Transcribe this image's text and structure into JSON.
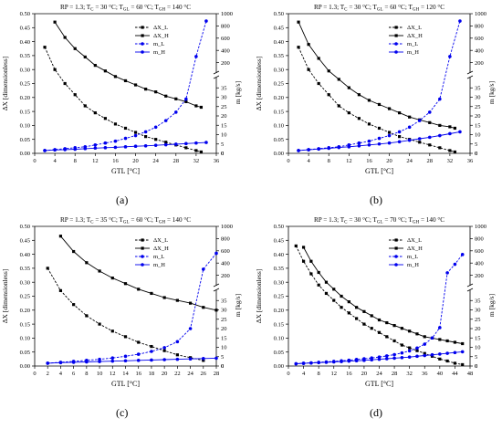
{
  "figure": {
    "colors": {
      "black": "#000000",
      "blue": "#0000ee",
      "axis": "#000000"
    }
  },
  "chart_data": [
    {
      "type": "line",
      "panel_label": "(a)",
      "title": "RP = 1.3; T_C = 30 °C; T_GL = 60 °C; T_GH = 140 °C",
      "title_parts": {
        "prefix": "RP = 1.3",
        "tc": "30 °C",
        "tgl": "60 °C",
        "tgh": "140 °C"
      },
      "xlabel": "GTL [°C]",
      "ylabel_left": "ΔX [dimensionless]",
      "ylabel_right": "m [kg/s]",
      "xlim": [
        0,
        36
      ],
      "xticks": [
        0,
        4,
        8,
        12,
        16,
        20,
        24,
        28,
        32,
        36
      ],
      "ylim_left": [
        0,
        0.5
      ],
      "yticks_left": [
        0.0,
        0.05,
        0.1,
        0.15,
        0.2,
        0.25,
        0.3,
        0.35,
        0.4,
        0.45,
        0.5
      ],
      "right_axis_lower": {
        "range": [
          0,
          40
        ],
        "ticks": [
          0,
          5,
          10,
          15,
          20,
          25,
          30,
          35
        ]
      },
      "right_axis_upper": {
        "range": [
          0,
          1000
        ],
        "ticks": [
          200,
          400,
          600,
          800,
          1000
        ]
      },
      "grid": false,
      "legend_position": "top-right inside",
      "series": [
        {
          "name": "ΔX_L",
          "axis": "left",
          "color": "#000000",
          "dashed": true,
          "x": [
            2,
            4,
            6,
            8,
            10,
            12,
            14,
            16,
            18,
            20,
            22,
            24,
            26,
            28,
            30,
            32,
            33
          ],
          "y": [
            0.38,
            0.3,
            0.25,
            0.21,
            0.17,
            0.145,
            0.125,
            0.105,
            0.09,
            0.075,
            0.06,
            0.05,
            0.04,
            0.03,
            0.02,
            0.01,
            0.005
          ]
        },
        {
          "name": "ΔX_H",
          "axis": "left",
          "color": "#000000",
          "dashed": false,
          "x": [
            4,
            6,
            8,
            10,
            12,
            14,
            16,
            18,
            20,
            22,
            24,
            26,
            28,
            30,
            32,
            33
          ],
          "y": [
            0.47,
            0.415,
            0.375,
            0.345,
            0.315,
            0.295,
            0.275,
            0.26,
            0.245,
            0.23,
            0.22,
            0.205,
            0.195,
            0.185,
            0.17,
            0.165
          ]
        },
        {
          "name": "m_L",
          "axis": "right",
          "color": "#0000ee",
          "dashed": true,
          "x": [
            2,
            4,
            6,
            8,
            10,
            12,
            14,
            16,
            18,
            20,
            22,
            24,
            26,
            28,
            30,
            32,
            34
          ],
          "y": [
            1.5,
            2,
            2.5,
            3,
            3.5,
            4.5,
            5.5,
            6.5,
            8,
            9.5,
            11.5,
            14,
            17.5,
            22,
            29,
            300,
            880
          ]
        },
        {
          "name": "m_H",
          "axis": "right",
          "color": "#0000ee",
          "dashed": false,
          "x": [
            2,
            4,
            6,
            8,
            10,
            12,
            14,
            16,
            18,
            20,
            22,
            24,
            26,
            28,
            30,
            32,
            34
          ],
          "y": [
            1.5,
            1.8,
            2,
            2.2,
            2.5,
            2.8,
            3,
            3.2,
            3.5,
            3.8,
            4,
            4.3,
            4.6,
            4.9,
            5.2,
            5.5,
            5.8
          ]
        }
      ]
    },
    {
      "type": "line",
      "panel_label": "(b)",
      "title": "RP = 1.3; T_C = 30 °C; T_GL = 60 °C; T_GH = 120 °C",
      "title_parts": {
        "prefix": "RP = 1.3",
        "tc": "30 °C",
        "tgl": "60 °C",
        "tgh": "120 °C"
      },
      "xlabel": "GTL [°C]",
      "ylabel_left": "ΔX [dimensionless]",
      "ylabel_right": "m [kg/s]",
      "xlim": [
        0,
        36
      ],
      "xticks": [
        0,
        4,
        8,
        12,
        16,
        20,
        24,
        28,
        32,
        36
      ],
      "ylim_left": [
        0,
        0.5
      ],
      "yticks_left": [
        0.0,
        0.05,
        0.1,
        0.15,
        0.2,
        0.25,
        0.3,
        0.35,
        0.4,
        0.45,
        0.5
      ],
      "right_axis_lower": {
        "range": [
          0,
          40
        ],
        "ticks": [
          0,
          5,
          10,
          15,
          20,
          25,
          30,
          35
        ]
      },
      "right_axis_upper": {
        "range": [
          0,
          1000
        ],
        "ticks": [
          200,
          400,
          600,
          800,
          1000
        ]
      },
      "grid": false,
      "legend_position": "top-right inside",
      "series": [
        {
          "name": "ΔX_L",
          "axis": "left",
          "color": "#000000",
          "dashed": true,
          "x": [
            2,
            4,
            6,
            8,
            10,
            12,
            14,
            16,
            18,
            20,
            22,
            24,
            26,
            28,
            30,
            32,
            33
          ],
          "y": [
            0.38,
            0.3,
            0.25,
            0.21,
            0.17,
            0.145,
            0.125,
            0.105,
            0.09,
            0.075,
            0.06,
            0.05,
            0.04,
            0.03,
            0.02,
            0.01,
            0.005
          ]
        },
        {
          "name": "ΔX_H",
          "axis": "left",
          "color": "#000000",
          "dashed": false,
          "x": [
            2,
            4,
            6,
            8,
            10,
            12,
            14,
            16,
            18,
            20,
            22,
            24,
            26,
            28,
            30,
            32,
            33
          ],
          "y": [
            0.47,
            0.39,
            0.34,
            0.295,
            0.265,
            0.235,
            0.21,
            0.19,
            0.175,
            0.16,
            0.145,
            0.13,
            0.12,
            0.11,
            0.1,
            0.095,
            0.09
          ]
        },
        {
          "name": "m_L",
          "axis": "right",
          "color": "#0000ee",
          "dashed": true,
          "x": [
            2,
            4,
            6,
            8,
            10,
            12,
            14,
            16,
            18,
            20,
            22,
            24,
            26,
            28,
            30,
            32,
            34
          ],
          "y": [
            1.5,
            2,
            2.5,
            3,
            3.5,
            4.5,
            5.5,
            6.5,
            8,
            9.5,
            11.5,
            14,
            17.5,
            22,
            29,
            300,
            880
          ]
        },
        {
          "name": "m_H",
          "axis": "right",
          "color": "#0000ee",
          "dashed": false,
          "x": [
            2,
            4,
            6,
            8,
            10,
            12,
            14,
            16,
            18,
            20,
            22,
            24,
            26,
            28,
            30,
            32,
            34
          ],
          "y": [
            1.5,
            1.9,
            2.3,
            2.7,
            3.1,
            3.5,
            4,
            4.5,
            5,
            5.5,
            6.2,
            7,
            7.8,
            8.6,
            9.5,
            10.5,
            11.5
          ]
        }
      ]
    },
    {
      "type": "line",
      "panel_label": "(c)",
      "title": "RP = 1.3; T_C = 35 °C; T_GL = 60 °C; T_GH = 140 °C",
      "title_parts": {
        "prefix": "RP = 1.3",
        "tc": "35 °C",
        "tgl": "60 °C",
        "tgh": "140 °C"
      },
      "xlabel": "GTL [°C]",
      "ylabel_left": "ΔX [dimensionless]",
      "ylabel_right": "m [kg/s]",
      "xlim": [
        0,
        28
      ],
      "xticks": [
        0,
        2,
        4,
        6,
        8,
        10,
        12,
        14,
        16,
        18,
        20,
        22,
        24,
        26,
        28
      ],
      "ylim_left": [
        0,
        0.5
      ],
      "yticks_left": [
        0.0,
        0.05,
        0.1,
        0.15,
        0.2,
        0.25,
        0.3,
        0.35,
        0.4,
        0.45,
        0.5
      ],
      "right_axis_lower": {
        "range": [
          0,
          40
        ],
        "ticks": [
          0,
          5,
          10,
          15,
          20,
          25,
          30,
          35
        ]
      },
      "right_axis_upper": {
        "range": [
          0,
          1000
        ],
        "ticks": [
          200,
          400,
          600,
          800,
          1000
        ]
      },
      "grid": false,
      "legend_position": "top-right inside",
      "series": [
        {
          "name": "ΔX_L",
          "axis": "left",
          "color": "#000000",
          "dashed": true,
          "x": [
            2,
            4,
            6,
            8,
            10,
            12,
            14,
            16,
            18,
            20,
            22,
            24,
            26
          ],
          "y": [
            0.35,
            0.27,
            0.22,
            0.18,
            0.15,
            0.125,
            0.105,
            0.085,
            0.07,
            0.055,
            0.04,
            0.03,
            0.02
          ]
        },
        {
          "name": "ΔX_H",
          "axis": "left",
          "color": "#000000",
          "dashed": false,
          "x": [
            4,
            6,
            8,
            10,
            12,
            14,
            16,
            18,
            20,
            22,
            24,
            26,
            28
          ],
          "y": [
            0.465,
            0.41,
            0.37,
            0.34,
            0.315,
            0.295,
            0.275,
            0.26,
            0.245,
            0.235,
            0.225,
            0.21,
            0.2
          ]
        },
        {
          "name": "m_L",
          "axis": "right",
          "color": "#0000ee",
          "dashed": true,
          "x": [
            2,
            4,
            6,
            8,
            10,
            12,
            14,
            16,
            18,
            20,
            22,
            24,
            26,
            28
          ],
          "y": [
            1.5,
            2,
            2.5,
            3,
            3.6,
            4.3,
            5.2,
            6.3,
            7.8,
            9.8,
            13,
            20,
            300,
            560
          ]
        },
        {
          "name": "m_H",
          "axis": "right",
          "color": "#0000ee",
          "dashed": false,
          "x": [
            2,
            4,
            6,
            8,
            10,
            12,
            14,
            16,
            18,
            20,
            22,
            24,
            26,
            28
          ],
          "y": [
            1.5,
            1.8,
            2,
            2.2,
            2.4,
            2.6,
            2.8,
            3,
            3.2,
            3.4,
            3.6,
            3.8,
            4,
            4.2
          ]
        }
      ]
    },
    {
      "type": "line",
      "panel_label": "(d)",
      "title": "RP = 1.3; T_C = 30 °C; T_GL = 70 °C; T_GH = 140 °C",
      "title_parts": {
        "prefix": "RP = 1.3",
        "tc": "30 °C",
        "tgl": "70 °C",
        "tgh": "140 °C"
      },
      "xlabel": "GTL [°C]",
      "ylabel_left": "ΔX [dimensionless]",
      "ylabel_right": "m [kg/s]",
      "xlim": [
        0,
        48
      ],
      "xticks": [
        0,
        4,
        8,
        12,
        16,
        20,
        24,
        28,
        32,
        36,
        40,
        44,
        48
      ],
      "ylim_left": [
        0,
        0.5
      ],
      "yticks_left": [
        0.0,
        0.05,
        0.1,
        0.15,
        0.2,
        0.25,
        0.3,
        0.35,
        0.4,
        0.45,
        0.5
      ],
      "right_axis_lower": {
        "range": [
          0,
          40
        ],
        "ticks": [
          0,
          5,
          10,
          15,
          20,
          25,
          30,
          35
        ]
      },
      "right_axis_upper": {
        "range": [
          0,
          1000
        ],
        "ticks": [
          200,
          400,
          600,
          800,
          1000
        ]
      },
      "grid": false,
      "legend_position": "top-right inside",
      "series": [
        {
          "name": "ΔX_L",
          "axis": "left",
          "color": "#000000",
          "dashed": true,
          "x": [
            2,
            4,
            6,
            8,
            10,
            12,
            14,
            16,
            18,
            20,
            22,
            24,
            26,
            28,
            30,
            32,
            34,
            36,
            38,
            40,
            42,
            44,
            46
          ],
          "y": [
            0.43,
            0.375,
            0.33,
            0.29,
            0.26,
            0.235,
            0.21,
            0.19,
            0.17,
            0.15,
            0.135,
            0.12,
            0.105,
            0.09,
            0.075,
            0.065,
            0.055,
            0.045,
            0.035,
            0.025,
            0.018,
            0.01,
            0.005
          ]
        },
        {
          "name": "ΔX_H",
          "axis": "left",
          "color": "#000000",
          "dashed": false,
          "x": [
            4,
            6,
            8,
            10,
            12,
            14,
            16,
            18,
            20,
            22,
            24,
            26,
            28,
            30,
            32,
            34,
            36,
            38,
            40,
            42,
            44,
            46
          ],
          "y": [
            0.425,
            0.375,
            0.335,
            0.3,
            0.275,
            0.25,
            0.23,
            0.21,
            0.195,
            0.18,
            0.165,
            0.155,
            0.145,
            0.135,
            0.125,
            0.115,
            0.105,
            0.1,
            0.095,
            0.09,
            0.085,
            0.08
          ]
        },
        {
          "name": "m_L",
          "axis": "right",
          "color": "#0000ee",
          "dashed": true,
          "x": [
            2,
            4,
            6,
            8,
            10,
            12,
            14,
            16,
            18,
            20,
            22,
            24,
            26,
            28,
            30,
            32,
            34,
            36,
            38,
            40,
            42,
            44,
            46
          ],
          "y": [
            1.2,
            1.5,
            1.7,
            2,
            2.2,
            2.5,
            2.8,
            3.1,
            3.5,
            3.9,
            4.3,
            4.8,
            5.4,
            6.1,
            7,
            8.1,
            9.6,
            11.7,
            15,
            20.5,
            240,
            380,
            540
          ]
        },
        {
          "name": "m_H",
          "axis": "right",
          "color": "#0000ee",
          "dashed": false,
          "x": [
            2,
            4,
            6,
            8,
            10,
            12,
            14,
            16,
            18,
            20,
            22,
            24,
            26,
            28,
            30,
            32,
            34,
            36,
            38,
            40,
            42,
            44,
            46
          ],
          "y": [
            1.2,
            1.4,
            1.6,
            1.8,
            2,
            2.2,
            2.4,
            2.6,
            2.8,
            3,
            3.3,
            3.6,
            3.9,
            4.2,
            4.5,
            4.8,
            5.2,
            5.6,
            6,
            6.4,
            6.8,
            7.2,
            7.6
          ]
        }
      ]
    }
  ]
}
